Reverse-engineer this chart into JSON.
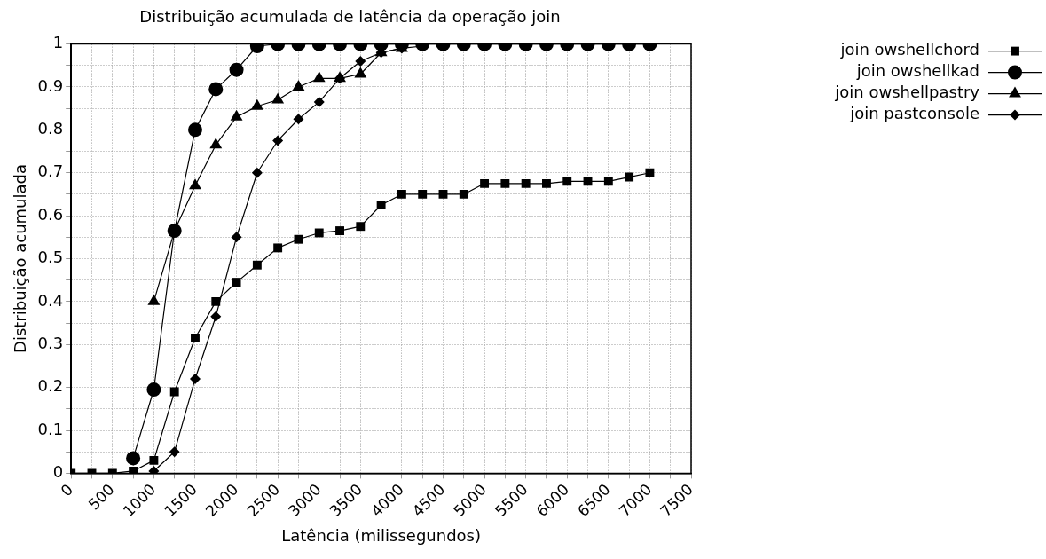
{
  "chart_data": {
    "type": "line",
    "title": "Distribuição acumulada de latência da operação join",
    "xlabel": "Latência (milissegundos)",
    "ylabel": "Distribuição acumulada",
    "x": [
      0,
      250,
      500,
      750,
      1000,
      1250,
      1500,
      1750,
      2000,
      2250,
      2500,
      2750,
      3000,
      3250,
      3500,
      3750,
      4000,
      4250,
      4500,
      4750,
      5000,
      5250,
      5500,
      5750,
      6000,
      6250,
      6500,
      6750,
      7000
    ],
    "series": [
      {
        "name": "join owshellchord",
        "color": "#000000",
        "marker": "square",
        "values": [
          0,
          0,
          0,
          0.005,
          0.03,
          0.19,
          0.315,
          0.4,
          0.445,
          0.485,
          0.525,
          0.545,
          0.56,
          0.565,
          0.575,
          0.625,
          0.65,
          0.65,
          0.65,
          0.65,
          0.675,
          0.675,
          0.675,
          0.675,
          0.68,
          0.68,
          0.68,
          0.69,
          0.7
        ]
      },
      {
        "name": "join owshellkad",
        "color": "#000000",
        "marker": "circle",
        "values": [
          null,
          null,
          null,
          0.035,
          0.195,
          0.565,
          0.8,
          0.895,
          0.94,
          0.995,
          1,
          1,
          1,
          1,
          1,
          1,
          1,
          1,
          1,
          1,
          1,
          1,
          1,
          1,
          1,
          1,
          1,
          1,
          1
        ]
      },
      {
        "name": "join owshellpastry",
        "color": "#000000",
        "marker": "triangle",
        "values": [
          null,
          null,
          null,
          null,
          0.4,
          0.565,
          0.67,
          0.765,
          0.83,
          0.855,
          0.87,
          0.9,
          0.92,
          0.92,
          0.93,
          0.98,
          0.99,
          null,
          null,
          null,
          null,
          null,
          null,
          null,
          null,
          null,
          null,
          null,
          null
        ]
      },
      {
        "name": "join pastconsole",
        "color": "#000000",
        "marker": "diamond",
        "values": [
          null,
          null,
          null,
          null,
          0.005,
          0.05,
          0.22,
          0.365,
          0.55,
          0.7,
          0.775,
          0.825,
          0.865,
          0.92,
          0.96,
          0.98,
          0.99,
          0.995,
          null,
          null,
          null,
          null,
          null,
          null,
          null,
          null,
          null,
          null,
          null
        ]
      }
    ],
    "xlim": [
      0,
      7500
    ],
    "xticks": [
      0,
      {
        "value": 250,
        "label": null
      },
      500,
      {
        "value": 750,
        "label": null
      },
      1000,
      {
        "value": 1250,
        "label": null
      },
      1500,
      {
        "value": 1750,
        "label": null
      },
      2000,
      {
        "value": 2250,
        "label": null
      },
      2500,
      {
        "value": 2750,
        "label": null
      },
      3000,
      {
        "value": 3250,
        "label": null
      },
      3500,
      {
        "value": 3750,
        "label": null
      },
      4000,
      {
        "value": 4250,
        "label": null
      },
      4500,
      {
        "value": 4750,
        "label": null
      },
      5000,
      {
        "value": 5250,
        "label": null
      },
      5500,
      {
        "value": 5750,
        "label": null
      },
      6000,
      {
        "value": 6250,
        "label": null
      },
      6500,
      {
        "value": 6750,
        "label": null
      },
      7000,
      {
        "value": 7250,
        "label": null
      },
      7500
    ],
    "ylim": [
      0,
      1
    ],
    "yticks": [
      0,
      {
        "value": 0.05,
        "label": null
      },
      0.1,
      {
        "value": 0.15,
        "label": null
      },
      0.2,
      {
        "value": 0.25,
        "label": null
      },
      0.3,
      {
        "value": 0.35,
        "label": null
      },
      0.4,
      {
        "value": 0.45,
        "label": null
      },
      0.5,
      {
        "value": 0.55,
        "label": null
      },
      0.6,
      {
        "value": 0.65,
        "label": null
      },
      0.7,
      {
        "value": 0.75,
        "label": null
      },
      0.8,
      {
        "value": 0.85,
        "label": null
      },
      0.9,
      {
        "value": 0.95,
        "label": null
      },
      1
    ],
    "grid": true,
    "legend": "top right",
    "line_style": "solid"
  }
}
